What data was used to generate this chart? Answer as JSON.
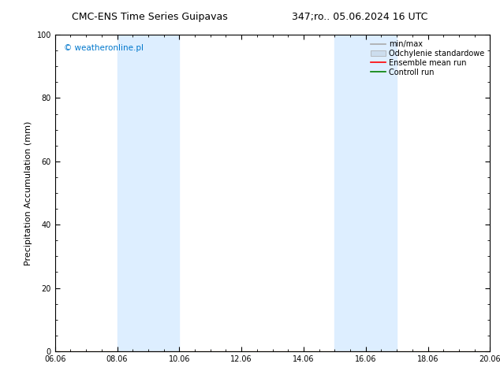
{
  "title_left": "CMC-ENS Time Series Guipavas",
  "title_right": "347;ro.. 05.06.2024 16 UTC",
  "ylabel": "Precipitation Accumulation (mm)",
  "ylim": [
    0,
    100
  ],
  "yticks": [
    0,
    20,
    40,
    60,
    80,
    100
  ],
  "xtick_labels": [
    "06.06",
    "08.06",
    "10.06",
    "12.06",
    "14.06",
    "16.06",
    "18.06",
    "20.06"
  ],
  "xtick_positions": [
    0,
    2,
    4,
    6,
    8,
    10,
    12,
    14
  ],
  "xlim": [
    0,
    14
  ],
  "shaded_regions": [
    {
      "x_start": 2.0,
      "x_end": 4.0,
      "color": "#ddeeff"
    },
    {
      "x_start": 9.0,
      "x_end": 11.0,
      "color": "#ddeeff"
    }
  ],
  "watermark": "© weatheronline.pl",
  "watermark_color": "#0077cc",
  "legend_entries": [
    {
      "label": "min/max",
      "color": "#aaaaaa",
      "linewidth": 1.2,
      "style": "line"
    },
    {
      "label": "Odchylenie standardowe",
      "color": "#ccddee",
      "style": "band"
    },
    {
      "label": "Ensemble mean run",
      "color": "#ff0000",
      "linewidth": 1.2,
      "style": "line"
    },
    {
      "label": "Controll run",
      "color": "#008000",
      "linewidth": 1.2,
      "style": "line"
    }
  ],
  "bg_color": "#ffffff",
  "title_fontsize": 9,
  "axis_label_fontsize": 8,
  "tick_fontsize": 7,
  "legend_fontsize": 7,
  "watermark_fontsize": 7.5
}
